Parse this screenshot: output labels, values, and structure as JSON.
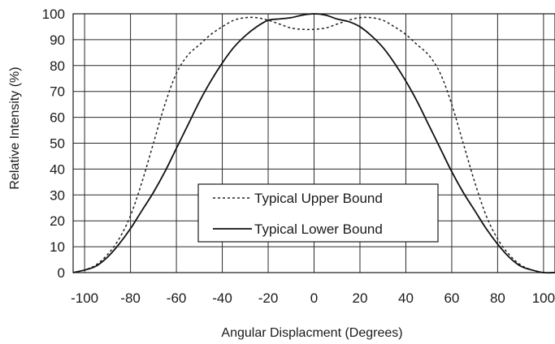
{
  "chart_data": {
    "type": "line",
    "title": "",
    "xlabel": "Angular Displacment (Degrees)",
    "ylabel": "Relative Intensity (%)",
    "xlim": [
      -105,
      105
    ],
    "ylim": [
      0,
      100
    ],
    "xticks": [
      -100,
      -80,
      -60,
      -40,
      -20,
      0,
      20,
      40,
      60,
      80,
      100
    ],
    "yticks": [
      0,
      10,
      20,
      30,
      40,
      50,
      60,
      70,
      80,
      90,
      100
    ],
    "grid": true,
    "legend_position": "bottom-center",
    "series": [
      {
        "name": "Typical Upper Bound",
        "style": "dashed",
        "color": "#222222",
        "x": [
          -105,
          -100,
          -95,
          -90,
          -85,
          -80,
          -75,
          -70,
          -65,
          -60,
          -55,
          -50,
          -45,
          -40,
          -35,
          -30,
          -25,
          -20,
          -15,
          -10,
          -5,
          0,
          5,
          10,
          15,
          20,
          25,
          30,
          35,
          40,
          45,
          50,
          55,
          60,
          65,
          70,
          75,
          80,
          85,
          90,
          95,
          100,
          105
        ],
        "y": [
          0,
          1,
          3,
          7,
          13,
          22,
          35,
          50,
          65,
          77,
          84,
          88,
          92,
          95,
          97.5,
          98.5,
          98.5,
          97.5,
          96,
          94.5,
          94,
          94,
          94.5,
          96,
          97.5,
          98.5,
          98.5,
          97.5,
          95,
          92,
          88,
          84,
          77,
          65,
          50,
          35,
          22,
          13,
          7,
          3,
          1,
          0,
          0
        ]
      },
      {
        "name": "Typical Lower Bound",
        "style": "solid",
        "color": "#111111",
        "x": [
          -105,
          -100,
          -95,
          -90,
          -85,
          -80,
          -75,
          -70,
          -65,
          -60,
          -55,
          -50,
          -45,
          -40,
          -35,
          -30,
          -25,
          -20,
          -15,
          -10,
          -5,
          0,
          5,
          10,
          15,
          20,
          25,
          30,
          35,
          40,
          45,
          50,
          55,
          60,
          65,
          70,
          75,
          80,
          85,
          90,
          95,
          100,
          105
        ],
        "y": [
          0,
          1,
          2.5,
          6,
          11,
          17,
          24,
          31,
          39,
          48,
          57,
          66,
          74,
          81,
          87,
          91.5,
          95,
          97.5,
          98,
          98.5,
          99.5,
          100,
          99.5,
          98,
          97,
          95,
          91.5,
          87,
          81,
          74,
          66,
          57,
          48,
          39,
          31,
          24,
          17,
          11,
          6,
          2.5,
          1,
          0,
          0
        ]
      }
    ]
  }
}
